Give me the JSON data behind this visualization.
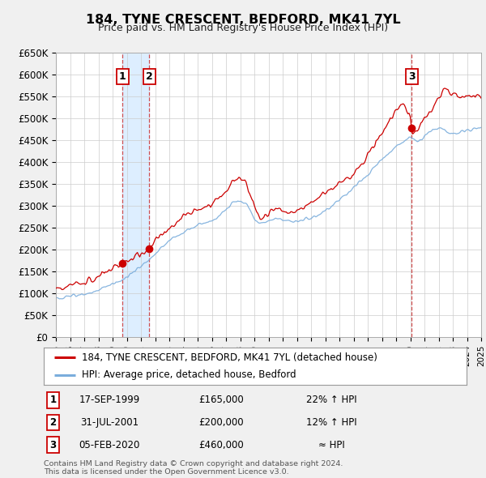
{
  "title": "184, TYNE CRESCENT, BEDFORD, MK41 7YL",
  "subtitle": "Price paid vs. HM Land Registry's House Price Index (HPI)",
  "title_fontsize": 11.5,
  "subtitle_fontsize": 9,
  "red_line_label": "184, TYNE CRESCENT, BEDFORD, MK41 7YL (detached house)",
  "blue_line_label": "HPI: Average price, detached house, Bedford",
  "transactions": [
    {
      "num": 1,
      "date": "17-SEP-1999",
      "price": 165000,
      "hpi_rel": "22% ↑ HPI",
      "year": 1999.71
    },
    {
      "num": 2,
      "date": "31-JUL-2001",
      "price": 200000,
      "hpi_rel": "12% ↑ HPI",
      "year": 2001.58
    },
    {
      "num": 3,
      "date": "05-FEB-2020",
      "price": 460000,
      "hpi_rel": "≈ HPI",
      "year": 2020.09
    }
  ],
  "footer": "Contains HM Land Registry data © Crown copyright and database right 2024.\nThis data is licensed under the Open Government Licence v3.0.",
  "ylim": [
    0,
    650000
  ],
  "yticks": [
    0,
    50000,
    100000,
    150000,
    200000,
    250000,
    300000,
    350000,
    400000,
    450000,
    500000,
    550000,
    600000,
    650000
  ],
  "ytick_labels": [
    "£0",
    "£50K",
    "£100K",
    "£150K",
    "£200K",
    "£250K",
    "£300K",
    "£350K",
    "£400K",
    "£450K",
    "£500K",
    "£550K",
    "£600K",
    "£650K"
  ],
  "background_color": "#f0f0f0",
  "plot_bg_color": "#ffffff",
  "grid_color": "#cccccc",
  "red_color": "#cc0000",
  "blue_color": "#7aaddc",
  "shade_color": "#ddeeff",
  "vline_color": "#cc3333"
}
